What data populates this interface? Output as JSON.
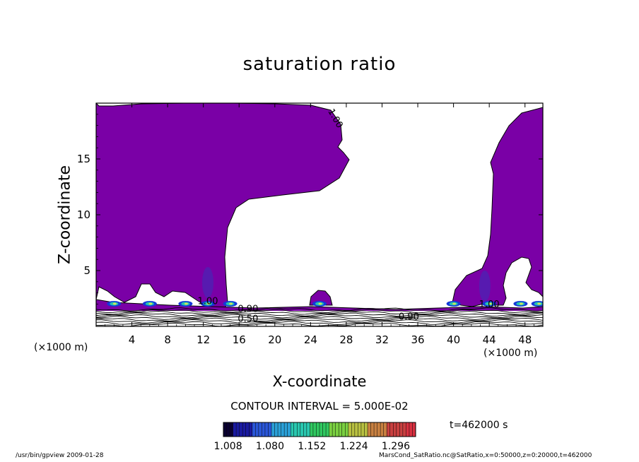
{
  "chart_data": {
    "type": "heatmap",
    "title": "saturation ratio",
    "xlabel": "X-coordinate",
    "ylabel": "Z-coordinate",
    "x_unit_left": "(×1000 m)",
    "x_unit_right": "(×1000 m)",
    "xlim": [
      0,
      50
    ],
    "ylim": [
      0,
      20
    ],
    "x_ticks": [
      4,
      8,
      12,
      16,
      20,
      24,
      28,
      32,
      36,
      40,
      44,
      48
    ],
    "y_ticks": [
      5,
      10,
      15
    ],
    "contour_labels": [
      "1.00",
      "1.00",
      "1.00",
      "0.90",
      "0.50",
      "0.90"
    ],
    "contour_interval": "CONTOUR INTERVAL = 5.000E-02",
    "colorbar_ticks": [
      "1.008",
      "1.080",
      "1.152",
      "1.224",
      "1.296"
    ],
    "colorbar_range": [
      1.0,
      1.33
    ],
    "colors": {
      "fill": "#7a00a6",
      "contour": "#000000"
    },
    "time_label": "t=462000 s",
    "footer_left": "/usr/bin/gpview   2009-01-28",
    "footer_right": "MarsCond_SatRatio.nc@SatRatio,x=0:50000,z=0:20000,t=462000"
  }
}
